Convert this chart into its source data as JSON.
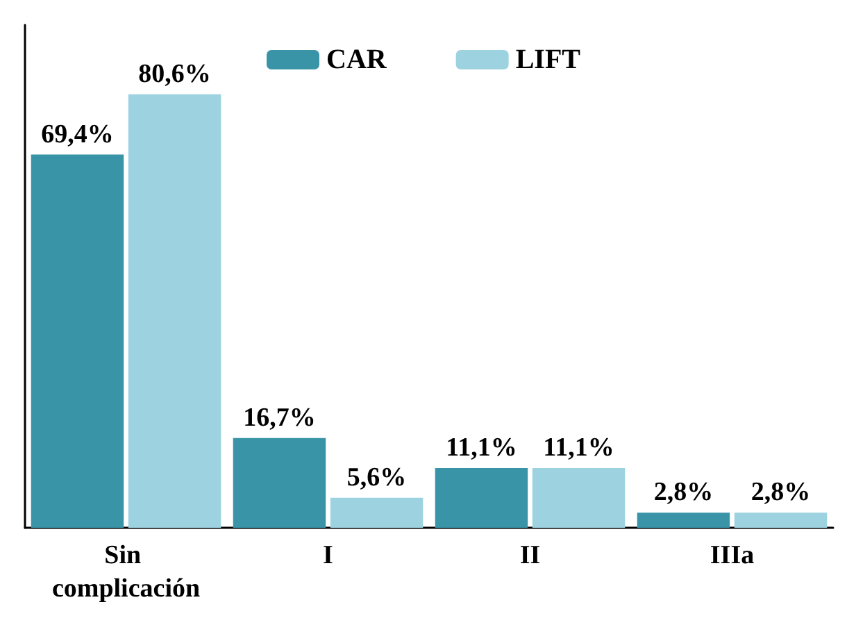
{
  "chart_data": {
    "type": "bar",
    "categories": [
      "Sin complicación",
      "I",
      "II",
      "IIIa"
    ],
    "legend": "top",
    "grid": false,
    "series": [
      {
        "name": "CAR",
        "color": "#3a94a8",
        "values": [
          69.4,
          16.7,
          11.1,
          2.8
        ],
        "value_labels": [
          "69,4%",
          "16,7%",
          "11,1%",
          "2,8%"
        ]
      },
      {
        "name": "LIFT",
        "color": "#9dd3e0",
        "values": [
          80.6,
          5.6,
          11.1,
          2.8
        ],
        "value_labels": [
          "80,6%",
          "5,6%",
          "11,1%",
          "2,8%"
        ]
      }
    ]
  }
}
